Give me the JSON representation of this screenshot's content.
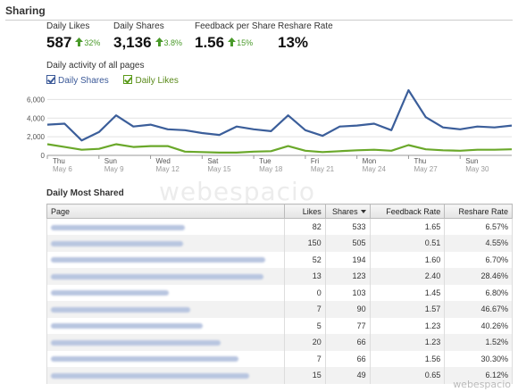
{
  "section_title": "Sharing",
  "stats": [
    {
      "label": "Daily Likes",
      "value": "587",
      "change": "32%"
    },
    {
      "label": "Daily Shares",
      "value": "3,136",
      "change": "3.8%"
    },
    {
      "label": "Feedback per Share",
      "value": "1.56",
      "change": "15%"
    },
    {
      "label": "Reshare Rate",
      "value": "13%",
      "change": ""
    }
  ],
  "chart_title": "Daily activity of all pages",
  "legend": {
    "shares": "Daily Shares",
    "likes": "Daily Likes"
  },
  "colors": {
    "shares": "#3b5e9a",
    "likes": "#6aa82a",
    "up": "#4a9a2a"
  },
  "chart_data": {
    "type": "line",
    "y_ticks": [
      "6,000",
      "4,000",
      "2,000",
      "0"
    ],
    "ylim": [
      0,
      7000
    ],
    "x_day_labels": [
      "Thu",
      "Sun",
      "Wed",
      "Sat",
      "Tue",
      "Fri",
      "Mon",
      "Thu",
      "Sun"
    ],
    "x_date_labels": [
      "May 6",
      "May 9",
      "May 12",
      "May 15",
      "May 18",
      "May 21",
      "May 24",
      "May 27",
      "May 30"
    ],
    "series": [
      {
        "name": "Daily Shares",
        "values": [
          3300,
          3400,
          1600,
          2500,
          4300,
          3100,
          3300,
          2800,
          2700,
          2400,
          2200,
          3100,
          2800,
          2600,
          4300,
          2700,
          2100,
          3100,
          3200,
          3400,
          2700,
          7000,
          4100,
          3000,
          2800,
          3100,
          3000,
          3200
        ]
      },
      {
        "name": "Daily Likes",
        "values": [
          1200,
          900,
          600,
          700,
          1200,
          900,
          1000,
          1000,
          400,
          350,
          300,
          300,
          400,
          450,
          1000,
          500,
          350,
          450,
          550,
          600,
          500,
          1100,
          650,
          550,
          500,
          600,
          600,
          650
        ]
      }
    ]
  },
  "table": {
    "title": "Daily Most Shared",
    "headers": {
      "page": "Page",
      "likes": "Likes",
      "shares": "Shares",
      "feedback": "Feedback Rate",
      "reshare": "Reshare Rate"
    },
    "rows": [
      {
        "likes": "82",
        "shares": "533",
        "feedback": "1.65",
        "reshare": "6.57%"
      },
      {
        "likes": "150",
        "shares": "505",
        "feedback": "0.51",
        "reshare": "4.55%"
      },
      {
        "likes": "52",
        "shares": "194",
        "feedback": "1.60",
        "reshare": "6.70%"
      },
      {
        "likes": "13",
        "shares": "123",
        "feedback": "2.40",
        "reshare": "28.46%"
      },
      {
        "likes": "0",
        "shares": "103",
        "feedback": "1.45",
        "reshare": "6.80%"
      },
      {
        "likes": "7",
        "shares": "90",
        "feedback": "1.57",
        "reshare": "46.67%"
      },
      {
        "likes": "5",
        "shares": "77",
        "feedback": "1.23",
        "reshare": "40.26%"
      },
      {
        "likes": "20",
        "shares": "66",
        "feedback": "1.23",
        "reshare": "1.52%"
      },
      {
        "likes": "7",
        "shares": "66",
        "feedback": "1.56",
        "reshare": "30.30%"
      },
      {
        "likes": "15",
        "shares": "49",
        "feedback": "0.65",
        "reshare": "6.12%"
      }
    ]
  },
  "watermark": "webespacio",
  "watermark_small": "webespacio"
}
